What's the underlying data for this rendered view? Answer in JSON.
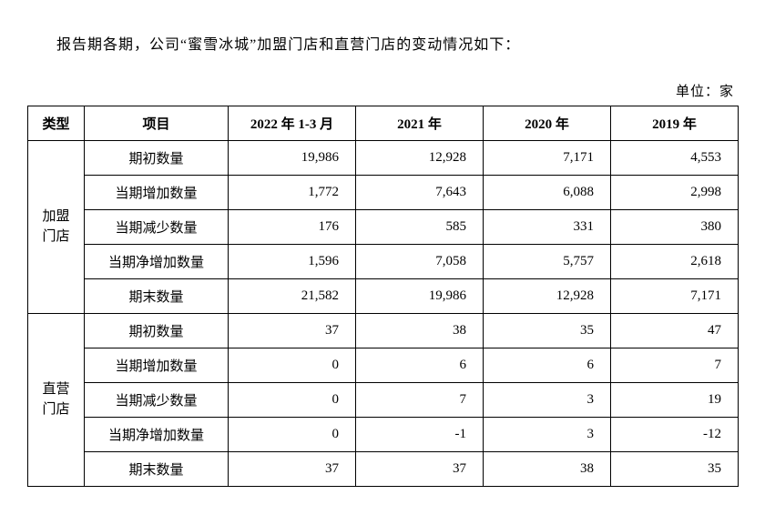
{
  "intro_text": "报告期各期，公司“蜜雪冰城”加盟门店和直营门店的变动情况如下：",
  "unit_label": "单位：家",
  "table": {
    "columns": [
      "类型",
      "项目",
      "2022 年 1-3 月",
      "2021 年",
      "2020 年",
      "2019 年"
    ],
    "groups": [
      {
        "type_label": "加盟门店",
        "type_label_vertical": "加盟\n门店",
        "rows": [
          {
            "item": "期初数量",
            "values": [
              "19,986",
              "12,928",
              "7,171",
              "4,553"
            ]
          },
          {
            "item": "当期增加数量",
            "values": [
              "1,772",
              "7,643",
              "6,088",
              "2,998"
            ]
          },
          {
            "item": "当期减少数量",
            "values": [
              "176",
              "585",
              "331",
              "380"
            ]
          },
          {
            "item": "当期净增加数量",
            "values": [
              "1,596",
              "7,058",
              "5,757",
              "2,618"
            ]
          },
          {
            "item": "期末数量",
            "values": [
              "21,582",
              "19,986",
              "12,928",
              "7,171"
            ]
          }
        ]
      },
      {
        "type_label": "直营门店",
        "type_label_vertical": "直营\n门店",
        "rows": [
          {
            "item": "期初数量",
            "values": [
              "37",
              "38",
              "35",
              "47"
            ]
          },
          {
            "item": "当期增加数量",
            "values": [
              "0",
              "6",
              "6",
              "7"
            ]
          },
          {
            "item": "当期减少数量",
            "values": [
              "0",
              "7",
              "3",
              "19"
            ]
          },
          {
            "item": "当期净增加数量",
            "values": [
              "0",
              "-1",
              "3",
              "-12"
            ]
          },
          {
            "item": "期末数量",
            "values": [
              "37",
              "37",
              "38",
              "35"
            ]
          }
        ]
      }
    ]
  },
  "styling": {
    "background_color": "#ffffff",
    "text_color": "#000000",
    "border_color": "#000000",
    "font_family_cn": "SimSun",
    "font_family_num": "Times New Roman",
    "intro_fontsize": 16,
    "table_fontsize": 15,
    "cell_padding": "8px 10px"
  }
}
